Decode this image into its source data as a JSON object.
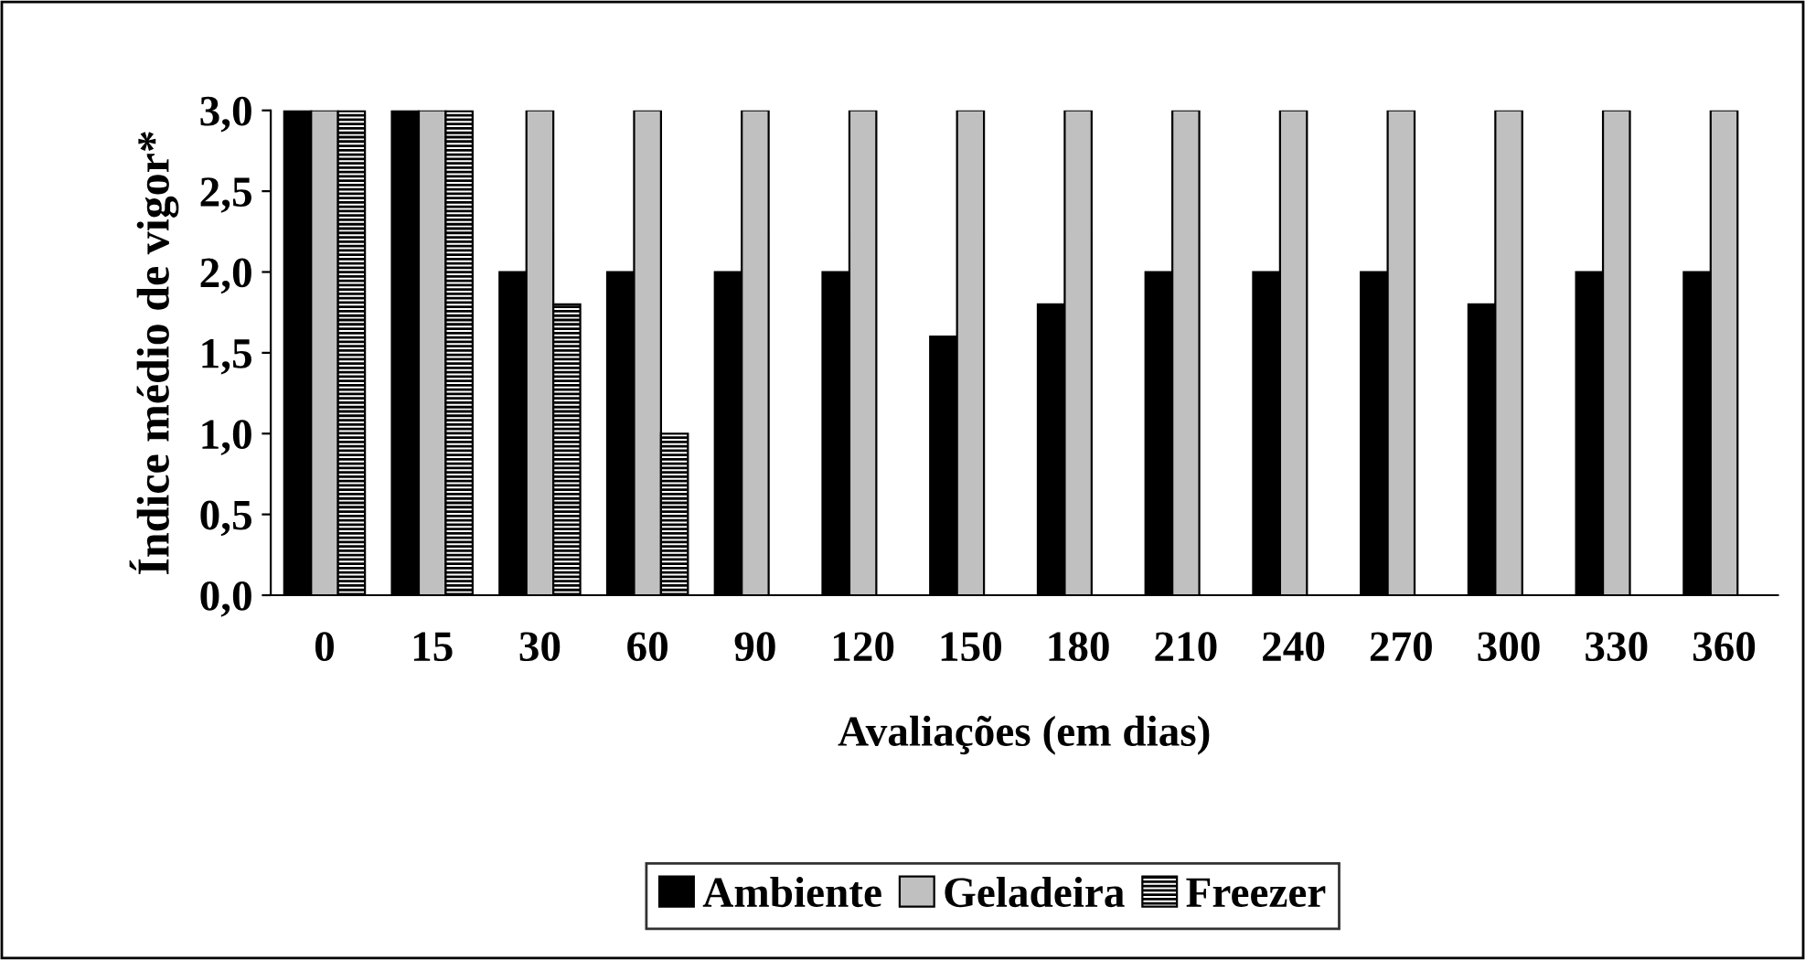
{
  "chart_data": {
    "type": "bar",
    "xlabel": "Avaliações (em dias)",
    "ylabel": "Índice médio de vigor*",
    "categories": [
      "0",
      "15",
      "30",
      "60",
      "90",
      "120",
      "150",
      "180",
      "210",
      "240",
      "270",
      "300",
      "330",
      "360"
    ],
    "series": [
      {
        "name": "Ambiente",
        "color": "#000000",
        "values": [
          3.0,
          3.0,
          2.0,
          2.0,
          2.0,
          2.0,
          1.6,
          1.8,
          2.0,
          2.0,
          2.0,
          1.8,
          2.0,
          2.0
        ]
      },
      {
        "name": "Geladeira",
        "color": "#c0c0c0",
        "values": [
          3.0,
          3.0,
          3.0,
          3.0,
          3.0,
          3.0,
          3.0,
          3.0,
          3.0,
          3.0,
          3.0,
          3.0,
          3.0,
          3.0
        ]
      },
      {
        "name": "Freezer",
        "color": "#000000",
        "values": [
          3.0,
          3.0,
          1.8,
          1.0,
          null,
          null,
          null,
          null,
          null,
          null,
          null,
          null,
          null,
          null
        ]
      }
    ],
    "ylim": [
      0,
      3.0
    ],
    "yticks": [
      {
        "value": 0,
        "label": "0,0"
      },
      {
        "value": 0.5,
        "label": "0,5"
      },
      {
        "value": 1.0,
        "label": "1,0"
      },
      {
        "value": 1.5,
        "label": "1,5"
      },
      {
        "value": 2.0,
        "label": "2,0"
      },
      {
        "value": 2.5,
        "label": "2,5"
      },
      {
        "value": 3.0,
        "label": "3,0"
      }
    ],
    "grid": false,
    "legend": "bottom"
  }
}
